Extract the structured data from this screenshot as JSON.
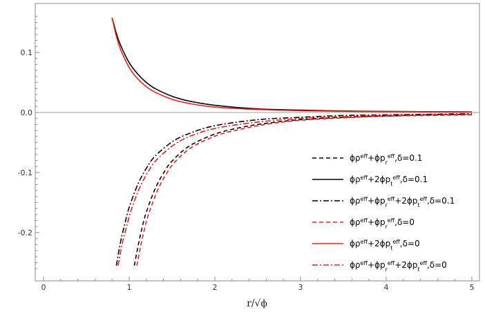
{
  "chart_data": {
    "type": "line",
    "title": "",
    "xlabel": "r/√ϕ",
    "ylabel": "",
    "xlim": [
      0,
      5.05
    ],
    "ylim": [
      -0.27,
      0.18
    ],
    "x_ticks": [
      "0",
      "1",
      "2",
      "3",
      "4",
      "5"
    ],
    "y_ticks": [
      "0.1",
      "0.0",
      "-0.1",
      "-0.2"
    ],
    "grid": false,
    "frame": true,
    "zero_line": true,
    "legend_position": "bottom-right",
    "series": [
      {
        "name": "ϕρ^eff+ϕp_r^eff,δ=0.1",
        "legend_html": "ϕρ<tspan class='sup' baseline-shift='super'>eff</tspan>+ϕp<tspan class='sup' baseline-shift='sub'>r</tspan><tspan class='sup' baseline-shift='super'>eff</tspan>,δ=0.1",
        "color": "#000000",
        "dash": "dashed",
        "points": [
          [
            1.06,
            -0.255
          ],
          [
            1.1,
            -0.225
          ],
          [
            1.15,
            -0.192
          ],
          [
            1.2,
            -0.166
          ],
          [
            1.3,
            -0.128
          ],
          [
            1.4,
            -0.101
          ],
          [
            1.5,
            -0.081
          ],
          [
            1.7,
            -0.056
          ],
          [
            2.0,
            -0.036
          ],
          [
            2.3,
            -0.025
          ],
          [
            2.6,
            -0.018
          ],
          [
            3.0,
            -0.012
          ],
          [
            3.5,
            -0.008
          ],
          [
            4.0,
            -0.006
          ],
          [
            4.5,
            -0.004
          ],
          [
            5.0,
            -0.003
          ]
        ]
      },
      {
        "name": "ϕρ^eff+2ϕp_t^eff,δ=0.1",
        "color": "#000000",
        "dash": "solid",
        "points": [
          [
            0.8,
            0.158
          ],
          [
            0.85,
            0.132
          ],
          [
            0.9,
            0.112
          ],
          [
            1.0,
            0.083
          ],
          [
            1.1,
            0.064
          ],
          [
            1.2,
            0.05
          ],
          [
            1.3,
            0.04
          ],
          [
            1.5,
            0.027
          ],
          [
            1.7,
            0.019
          ],
          [
            2.0,
            0.012
          ],
          [
            2.5,
            0.006
          ],
          [
            3.0,
            0.004
          ],
          [
            3.5,
            0.0025
          ],
          [
            4.0,
            0.0018
          ],
          [
            5.0,
            0.001
          ]
        ]
      },
      {
        "name": "ϕρ^eff+ϕp_r^eff+2ϕp_t^eff,δ=0.1",
        "color": "#000000",
        "dash": "dashdot",
        "points": [
          [
            0.85,
            -0.255
          ],
          [
            0.9,
            -0.215
          ],
          [
            0.95,
            -0.185
          ],
          [
            1.0,
            -0.158
          ],
          [
            1.1,
            -0.12
          ],
          [
            1.2,
            -0.093
          ],
          [
            1.3,
            -0.073
          ],
          [
            1.5,
            -0.049
          ],
          [
            1.7,
            -0.035
          ],
          [
            2.0,
            -0.022
          ],
          [
            2.5,
            -0.012
          ],
          [
            3.0,
            -0.008
          ],
          [
            3.5,
            -0.005
          ],
          [
            4.0,
            -0.004
          ],
          [
            5.0,
            -0.002
          ]
        ]
      },
      {
        "name": "ϕρ^eff+ϕp_r^eff,δ=0",
        "color": "#e0201b",
        "dash": "dashed",
        "points": [
          [
            1.09,
            -0.255
          ],
          [
            1.13,
            -0.225
          ],
          [
            1.18,
            -0.193
          ],
          [
            1.23,
            -0.168
          ],
          [
            1.33,
            -0.13
          ],
          [
            1.43,
            -0.103
          ],
          [
            1.53,
            -0.083
          ],
          [
            1.73,
            -0.058
          ],
          [
            2.03,
            -0.038
          ],
          [
            2.33,
            -0.027
          ],
          [
            2.63,
            -0.019
          ],
          [
            3.0,
            -0.013
          ],
          [
            3.5,
            -0.009
          ],
          [
            4.0,
            -0.006
          ],
          [
            4.5,
            -0.005
          ],
          [
            5.0,
            -0.004
          ]
        ]
      },
      {
        "name": "ϕρ^eff+2ϕp_t^eff,δ=0",
        "color": "#e0201b",
        "dash": "solid",
        "points": [
          [
            0.8,
            0.158
          ],
          [
            0.85,
            0.127
          ],
          [
            0.9,
            0.105
          ],
          [
            1.0,
            0.075
          ],
          [
            1.1,
            0.056
          ],
          [
            1.2,
            0.043
          ],
          [
            1.3,
            0.034
          ],
          [
            1.5,
            0.022
          ],
          [
            1.7,
            0.015
          ],
          [
            2.0,
            0.009
          ],
          [
            2.5,
            0.005
          ],
          [
            3.0,
            0.003
          ],
          [
            3.5,
            0.002
          ],
          [
            4.0,
            0.0015
          ],
          [
            5.0,
            0.001
          ]
        ]
      },
      {
        "name": "ϕρ^eff+ϕp_r^eff+2ϕp_t^eff,δ=0",
        "color": "#e0201b",
        "dash": "dashdot",
        "points": [
          [
            0.87,
            -0.255
          ],
          [
            0.92,
            -0.218
          ],
          [
            0.97,
            -0.19
          ],
          [
            1.02,
            -0.164
          ],
          [
            1.12,
            -0.126
          ],
          [
            1.22,
            -0.099
          ],
          [
            1.32,
            -0.079
          ],
          [
            1.52,
            -0.054
          ],
          [
            1.72,
            -0.039
          ],
          [
            2.02,
            -0.026
          ],
          [
            2.5,
            -0.016
          ],
          [
            3.0,
            -0.01
          ],
          [
            3.5,
            -0.007
          ],
          [
            4.0,
            -0.005
          ],
          [
            5.0,
            -0.003
          ]
        ]
      }
    ]
  },
  "legend": [
    {
      "base": "ϕρ",
      "p1": "+ϕp",
      "s1": "r",
      "tail": ",δ=0.1",
      "form": "rr"
    },
    {
      "base": "ϕρ",
      "p1": "+2ϕp",
      "s1": "t",
      "tail": ",δ=0.1",
      "form": "t"
    },
    {
      "base": "ϕρ",
      "p1": "+ϕp",
      "s1": "r",
      "p2": "+2ϕp",
      "s2": "t",
      "tail": ",δ=0.1",
      "form": "rt"
    },
    {
      "base": "ϕρ",
      "p1": "+ϕp",
      "s1": "r",
      "tail": ",δ=0",
      "form": "rr"
    },
    {
      "base": "ϕρ",
      "p1": "+2ϕp",
      "s1": "t",
      "tail": ",δ=0",
      "form": "t"
    },
    {
      "base": "ϕρ",
      "p1": "+ϕp",
      "s1": "r",
      "p2": "+2ϕp",
      "s2": "t",
      "tail": ",δ=0",
      "form": "rt"
    }
  ],
  "sup_text": "eff"
}
